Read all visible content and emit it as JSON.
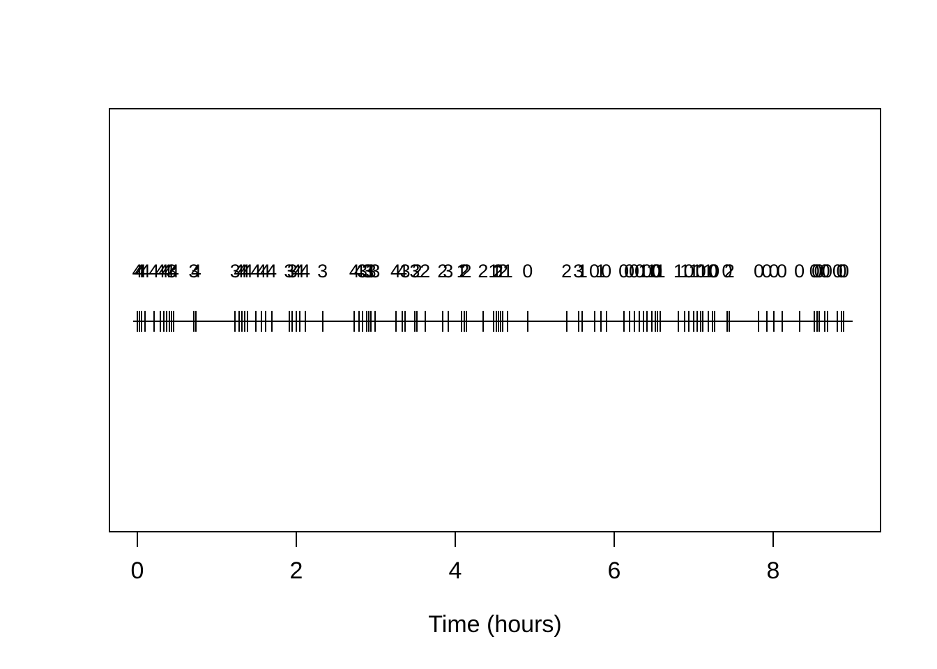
{
  "figure": {
    "x_axis_title": "Time (hours)"
  },
  "chart_data": {
    "type": "scatter",
    "subtype": "event-rug-plot-with-count-labels",
    "title": "",
    "xlabel": "Time (hours)",
    "ylabel": "",
    "xlim": [
      -0.36,
      9.34
    ],
    "x_ticks": [
      0,
      2,
      4,
      6,
      8
    ],
    "grid": false,
    "legend": false,
    "line_extent_hours": [
      -0.05,
      9.0
    ],
    "events_note": "each event = [time_hours, count_label]; vertical tick on baseline with digit printed above",
    "events": [
      [
        0.0,
        4
      ],
      [
        0.03,
        4
      ],
      [
        0.05,
        4
      ],
      [
        0.1,
        4
      ],
      [
        0.21,
        4
      ],
      [
        0.29,
        4
      ],
      [
        0.33,
        4
      ],
      [
        0.37,
        4
      ],
      [
        0.4,
        4
      ],
      [
        0.43,
        3
      ],
      [
        0.46,
        4
      ],
      [
        0.71,
        3
      ],
      [
        0.74,
        4
      ],
      [
        1.23,
        3
      ],
      [
        1.28,
        4
      ],
      [
        1.32,
        4
      ],
      [
        1.35,
        4
      ],
      [
        1.39,
        4
      ],
      [
        1.49,
        4
      ],
      [
        1.56,
        4
      ],
      [
        1.61,
        4
      ],
      [
        1.69,
        4
      ],
      [
        1.91,
        3
      ],
      [
        1.95,
        3
      ],
      [
        2.0,
        4
      ],
      [
        2.04,
        4
      ],
      [
        2.11,
        4
      ],
      [
        2.33,
        3
      ],
      [
        2.73,
        4
      ],
      [
        2.79,
        4
      ],
      [
        2.83,
        3
      ],
      [
        2.89,
        3
      ],
      [
        2.91,
        3
      ],
      [
        2.94,
        3
      ],
      [
        2.99,
        3
      ],
      [
        3.25,
        4
      ],
      [
        3.33,
        4
      ],
      [
        3.37,
        3
      ],
      [
        3.49,
        3
      ],
      [
        3.52,
        2
      ],
      [
        3.62,
        2
      ],
      [
        3.84,
        2
      ],
      [
        3.91,
        3
      ],
      [
        4.08,
        1
      ],
      [
        4.11,
        2
      ],
      [
        4.14,
        2
      ],
      [
        4.35,
        2
      ],
      [
        4.48,
        1
      ],
      [
        4.52,
        1
      ],
      [
        4.54,
        2
      ],
      [
        4.57,
        1
      ],
      [
        4.6,
        2
      ],
      [
        4.66,
        1
      ],
      [
        4.91,
        0
      ],
      [
        5.4,
        2
      ],
      [
        5.55,
        3
      ],
      [
        5.6,
        1
      ],
      [
        5.75,
        0
      ],
      [
        5.83,
        1
      ],
      [
        5.9,
        0
      ],
      [
        6.12,
        0
      ],
      [
        6.19,
        0
      ],
      [
        6.25,
        0
      ],
      [
        6.32,
        0
      ],
      [
        6.37,
        1
      ],
      [
        6.41,
        0
      ],
      [
        6.47,
        1
      ],
      [
        6.52,
        0
      ],
      [
        6.54,
        0
      ],
      [
        6.58,
        1
      ],
      [
        6.81,
        1
      ],
      [
        6.89,
        1
      ],
      [
        6.94,
        0
      ],
      [
        7.0,
        1
      ],
      [
        7.04,
        1
      ],
      [
        7.09,
        0
      ],
      [
        7.11,
        1
      ],
      [
        7.18,
        1
      ],
      [
        7.24,
        0
      ],
      [
        7.26,
        0
      ],
      [
        7.42,
        0
      ],
      [
        7.45,
        2
      ],
      [
        7.82,
        0
      ],
      [
        7.92,
        0
      ],
      [
        8.01,
        0
      ],
      [
        8.11,
        0
      ],
      [
        8.33,
        0
      ],
      [
        8.52,
        0
      ],
      [
        8.55,
        0
      ],
      [
        8.58,
        0
      ],
      [
        8.65,
        0
      ],
      [
        8.68,
        0
      ],
      [
        8.81,
        0
      ],
      [
        8.86,
        0
      ],
      [
        8.89,
        0
      ]
    ]
  }
}
